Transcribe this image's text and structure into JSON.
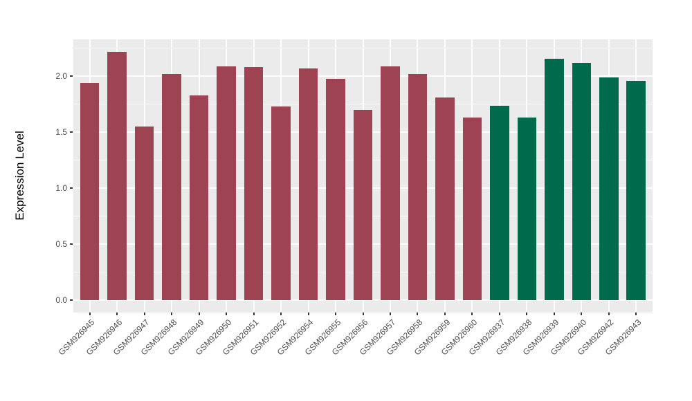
{
  "figure": {
    "background": "#FFFFFF",
    "panel_background": "#EBEBEB",
    "gridline_color": "#FFFFFF",
    "axis_text_color": "#4D4D4D",
    "axis_title_color": "#000000",
    "tick_mark_color": "#333333"
  },
  "chart_data": {
    "type": "bar",
    "title": "",
    "xlabel": "",
    "ylabel": "Expression Level",
    "ylim": [
      -0.11,
      2.33
    ],
    "y_tick_values": [
      0.0,
      0.5,
      1.0,
      1.5,
      2.0
    ],
    "y_tick_labels": [
      "0.0",
      "0.5",
      "1.0",
      "1.5",
      "2.0"
    ],
    "y_minor_tick_values": [
      0.25,
      0.75,
      1.25,
      1.75,
      2.25
    ],
    "grid": "major-and-minor-horizontal, major-vertical-at-category-centers",
    "legend": "none",
    "bar_width_fraction": 0.7,
    "x_label_rotation_deg": 45,
    "categories": [
      "GSM926945",
      "GSM926946",
      "GSM926947",
      "GSM926948",
      "GSM926949",
      "GSM926950",
      "GSM926951",
      "GSM926952",
      "GSM926954",
      "GSM926955",
      "GSM926956",
      "GSM926957",
      "GSM926958",
      "GSM926959",
      "GSM926960",
      "GSM926937",
      "GSM926938",
      "GSM926939",
      "GSM926940",
      "GSM926942",
      "GSM926943"
    ],
    "values": [
      1.94,
      2.22,
      1.55,
      2.02,
      1.83,
      2.09,
      2.08,
      1.73,
      2.07,
      1.98,
      1.7,
      2.09,
      2.02,
      1.81,
      1.63,
      1.74,
      1.63,
      2.16,
      2.12,
      1.99,
      1.96
    ],
    "bar_groups": [
      "red",
      "red",
      "red",
      "red",
      "red",
      "red",
      "red",
      "red",
      "red",
      "red",
      "red",
      "red",
      "red",
      "red",
      "red",
      "green",
      "green",
      "green",
      "green",
      "green",
      "green"
    ],
    "group_colors": {
      "red": "#9E4351",
      "green": "#006A4D"
    }
  }
}
